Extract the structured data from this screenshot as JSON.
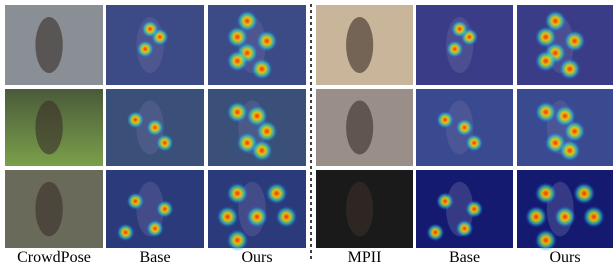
{
  "panels": [
    {
      "columns": [
        "CrowdPose",
        "Base",
        "Ours"
      ]
    },
    {
      "columns": [
        "MPII",
        "Base",
        "Ours"
      ]
    }
  ]
}
